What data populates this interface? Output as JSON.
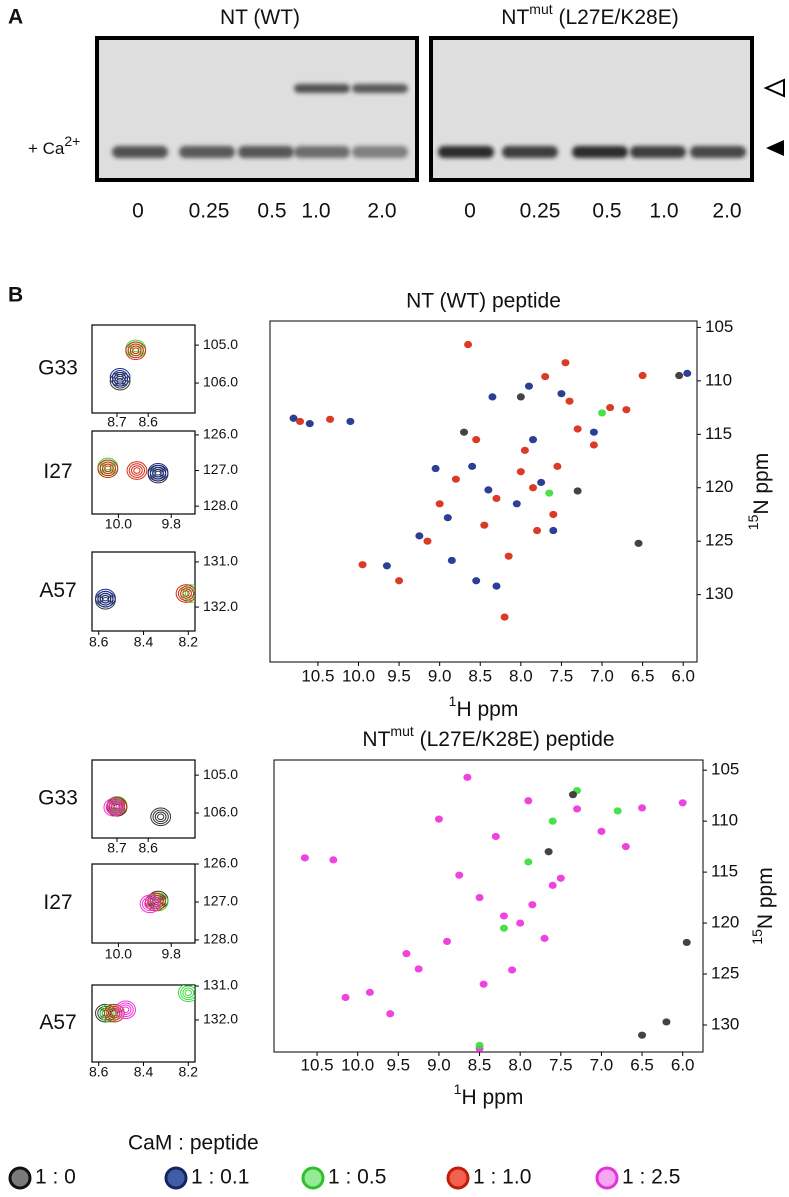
{
  "panel_a": {
    "label": "A",
    "condition": {
      "text": "+ Ca",
      "sup": "2+"
    },
    "gels": [
      {
        "title": {
          "main": "NT (WT)"
        },
        "lanes": [
          "0",
          "0.25",
          "0.5",
          "1.0",
          "2.0"
        ]
      },
      {
        "title": {
          "main": "NT",
          "sup": "mut",
          "rest": " (L27E/K28E)"
        },
        "lanes": [
          "0",
          "0.25",
          "0.5",
          "1.0",
          "2.0"
        ]
      }
    ]
  },
  "panel_b": {
    "label": "B"
  },
  "legend": {
    "title": "CaM : peptide",
    "entries": [
      {
        "label": "1 : 0",
        "color": "#7a7a7a",
        "edge": "#111111"
      },
      {
        "label": "1 : 0.1",
        "color": "#3f5ea5",
        "edge": "#16255e"
      },
      {
        "label": "1 : 0.5",
        "color": "#93ec93",
        "edge": "#2fbf2f"
      },
      {
        "label": "1 : 1.0",
        "color": "#f2604e",
        "edge": "#c41a08"
      },
      {
        "label": "1 : 2.5",
        "color": "#f7a6f2",
        "edge": "#e033d8"
      }
    ]
  },
  "chart_data": [
    {
      "type": "scatter",
      "title": "NT (WT) peptide",
      "x_label": {
        "sup": "1",
        "text": "H ppm"
      },
      "y_label": {
        "sup": "15",
        "text": "N ppm"
      },
      "xlim": [
        11.09,
        5.83
      ],
      "ylim": [
        136.3,
        104.4
      ],
      "xticks": [
        10.5,
        {
          "value": 10,
          "label": "10.0"
        },
        9.5,
        {
          "value": 9,
          "label": "9.0"
        },
        8.5,
        {
          "value": 8,
          "label": "8.0"
        },
        7.5,
        {
          "value": 7,
          "label": "7.0"
        },
        6.5,
        {
          "value": 6,
          "label": "6.0"
        }
      ],
      "yticks": [
        105,
        110,
        115,
        120,
        125,
        130
      ],
      "series": [
        {
          "color": "#1a2f8c",
          "x": [
            10.8,
            10.6,
            10.1,
            9.65,
            9.25,
            8.85,
            8.55,
            8.3,
            8.35,
            7.9,
            7.5,
            7.1,
            8.6,
            8.05,
            7.75,
            8.4,
            7.6,
            9.05,
            8.9,
            5.95,
            7.85
          ],
          "values": [
            113.5,
            114.0,
            113.8,
            127.3,
            124.5,
            126.8,
            128.7,
            129.2,
            111.5,
            110.5,
            111.2,
            114.8,
            118.0,
            121.5,
            119.5,
            120.2,
            124.0,
            118.2,
            122.8,
            109.3,
            115.5
          ]
        },
        {
          "color": "#d82a14",
          "x": [
            10.72,
            10.35,
            9.95,
            9.5,
            9.15,
            8.65,
            8.2,
            8.55,
            8.3,
            8.0,
            7.85,
            7.6,
            7.7,
            7.4,
            7.3,
            6.9,
            6.7,
            6.5,
            7.1,
            8.8,
            8.45,
            7.95,
            7.55,
            9.0,
            8.15,
            7.8,
            7.45
          ],
          "values": [
            113.8,
            113.6,
            127.2,
            128.7,
            125.0,
            106.6,
            132.1,
            115.5,
            121.0,
            118.5,
            120.0,
            122.5,
            109.6,
            111.9,
            114.5,
            112.5,
            112.7,
            109.5,
            116.0,
            119.2,
            123.5,
            116.5,
            118.0,
            121.5,
            126.4,
            124.0,
            108.3
          ]
        },
        {
          "color": "#333333",
          "x": [
            8.0,
            7.3,
            6.05,
            6.55,
            8.7
          ],
          "values": [
            111.5,
            120.3,
            109.5,
            125.2,
            114.8
          ]
        },
        {
          "color": "#3ddc3d",
          "x": [
            7.65,
            7.0
          ],
          "values": [
            120.5,
            113.0
          ]
        }
      ]
    },
    {
      "type": "scatter",
      "label": "G33",
      "xlim": [
        8.78,
        8.45
      ],
      "ylim": [
        106.79,
        104.47
      ],
      "xticks": [
        8.7,
        8.6
      ],
      "yticks": [
        {
          "value": 105,
          "label": "105.0"
        },
        {
          "value": 106,
          "label": "106.0"
        }
      ],
      "series": [
        {
          "color": "#333333",
          "x": [
            8.69
          ],
          "values": [
            105.95
          ]
        },
        {
          "color": "#1a2f8c",
          "x": [
            8.69
          ],
          "values": [
            105.85
          ]
        },
        {
          "color": "#3ddc3d",
          "x": [
            8.64
          ],
          "values": [
            105.1
          ]
        },
        {
          "color": "#d82a14",
          "x": [
            8.64
          ],
          "values": [
            105.15
          ]
        }
      ]
    },
    {
      "type": "scatter",
      "label": "I27",
      "xlim": [
        10.1,
        9.71
      ],
      "ylim": [
        128.22,
        125.89
      ],
      "xticks": [
        {
          "value": 10,
          "label": "10.0"
        },
        9.8
      ],
      "yticks": [
        {
          "value": 126,
          "label": "126.0"
        },
        {
          "value": 127,
          "label": "127.0"
        },
        {
          "value": 128,
          "label": "128.0"
        }
      ],
      "series": [
        {
          "color": "#333333",
          "x": [
            9.85
          ],
          "values": [
            127.1
          ]
        },
        {
          "color": "#1a2f8c",
          "x": [
            9.85
          ],
          "values": [
            127.05
          ]
        },
        {
          "color": "#3ddc3d",
          "x": [
            10.04
          ],
          "values": [
            126.9
          ]
        },
        {
          "color": "#d82a14",
          "x": [
            10.04,
            9.93
          ],
          "values": [
            126.95,
            127.0
          ]
        }
      ]
    },
    {
      "type": "scatter",
      "label": "A57",
      "xlim": [
        8.63,
        8.17
      ],
      "ylim": [
        132.53,
        130.78
      ],
      "xticks": [
        8.6,
        8.4,
        8.2
      ],
      "yticks": [
        {
          "value": 131,
          "label": "131.0"
        },
        {
          "value": 132,
          "label": "132.0"
        }
      ],
      "series": [
        {
          "color": "#333333",
          "x": [
            8.57
          ],
          "values": [
            131.85
          ]
        },
        {
          "color": "#1a2f8c",
          "x": [
            8.57
          ],
          "values": [
            131.8
          ]
        },
        {
          "color": "#3ddc3d",
          "x": [
            8.19
          ],
          "values": [
            131.7
          ]
        },
        {
          "color": "#d82a14",
          "x": [
            8.21
          ],
          "values": [
            131.7
          ]
        }
      ]
    },
    {
      "type": "scatter",
      "title": {
        "main": "NT",
        "sup": "mut",
        "rest": " (L27E/K28E) peptide"
      },
      "x_label": {
        "sup": "1",
        "text": "H ppm"
      },
      "y_label": {
        "sup": "15",
        "text": "N ppm"
      },
      "xlim": [
        11.03,
        5.75
      ],
      "ylim": [
        132.65,
        104.0
      ],
      "xticks": [
        10.5,
        {
          "value": 10,
          "label": "10.0"
        },
        9.5,
        {
          "value": 9,
          "label": "9.0"
        },
        8.5,
        {
          "value": 8,
          "label": "8.0"
        },
        7.5,
        {
          "value": 7,
          "label": "7.0"
        },
        6.5,
        {
          "value": 6,
          "label": "6.0"
        }
      ],
      "yticks": [
        105,
        110,
        115,
        120,
        125,
        130
      ],
      "series": [
        {
          "color": "#ee33dd",
          "x": [
            10.65,
            10.3,
            10.15,
            9.85,
            9.6,
            8.65,
            8.5,
            9.25,
            8.9,
            8.5,
            8.2,
            8.0,
            7.85,
            7.7,
            7.5,
            7.3,
            7.0,
            6.7,
            6.5,
            6.0,
            9.0,
            8.3,
            7.9,
            8.75,
            8.1,
            7.6,
            9.4,
            8.45
          ],
          "values": [
            113.6,
            113.8,
            127.3,
            126.8,
            128.9,
            105.7,
            132.3,
            124.5,
            121.8,
            117.5,
            119.3,
            120.0,
            118.2,
            121.5,
            115.6,
            108.8,
            111.0,
            112.5,
            108.7,
            108.2,
            109.8,
            111.5,
            108.0,
            115.3,
            124.6,
            116.3,
            123.0,
            126.0
          ]
        },
        {
          "color": "#3ddc3d",
          "x": [
            7.9,
            7.6,
            7.3,
            8.2,
            6.8,
            8.5
          ],
          "values": [
            114.0,
            110.0,
            107.0,
            120.5,
            109.0,
            132.0
          ]
        },
        {
          "color": "#333333",
          "x": [
            7.35,
            5.95,
            6.2,
            6.5,
            7.65
          ],
          "values": [
            107.4,
            121.9,
            129.7,
            131.0,
            113.0
          ]
        }
      ]
    },
    {
      "type": "scatter",
      "label": "G33",
      "xlim": [
        8.78,
        8.45
      ],
      "ylim": [
        106.66,
        104.6
      ],
      "xticks": [
        8.7,
        8.6
      ],
      "yticks": [
        {
          "value": 105,
          "label": "105.0"
        },
        {
          "value": 106,
          "label": "106.0"
        }
      ],
      "series": [
        {
          "color": "#333333",
          "x": [
            8.7,
            8.56
          ],
          "values": [
            105.85,
            106.1
          ]
        },
        {
          "color": "#3ddc3d",
          "x": [
            8.7
          ],
          "values": [
            105.8
          ]
        },
        {
          "color": "#d82a14",
          "x": [
            8.7
          ],
          "values": [
            105.82
          ]
        },
        {
          "color": "#ee33dd",
          "x": [
            8.71
          ],
          "values": [
            105.85
          ]
        }
      ]
    },
    {
      "type": "scatter",
      "label": "I27",
      "xlim": [
        10.1,
        9.71
      ],
      "ylim": [
        128.08,
        126.0
      ],
      "xticks": [
        {
          "value": 10,
          "label": "10.0"
        },
        9.8
      ],
      "yticks": [
        {
          "value": 126,
          "label": "126.0"
        },
        {
          "value": 127,
          "label": "127.0"
        },
        {
          "value": 128,
          "label": "128.0"
        }
      ],
      "series": [
        {
          "color": "#333333",
          "x": [
            9.85
          ],
          "values": [
            126.95
          ]
        },
        {
          "color": "#3ddc3d",
          "x": [
            9.85
          ],
          "values": [
            127.0
          ]
        },
        {
          "color": "#d82a14",
          "x": [
            9.86
          ],
          "values": [
            127.0
          ]
        },
        {
          "color": "#ee33dd",
          "x": [
            9.88
          ],
          "values": [
            127.05
          ]
        }
      ]
    },
    {
      "type": "scatter",
      "label": "A57",
      "xlim": [
        8.63,
        8.17
      ],
      "ylim": [
        133.24,
        130.97
      ],
      "xticks": [
        8.6,
        8.4,
        8.2
      ],
      "yticks": [
        {
          "value": 131,
          "label": "131.0"
        },
        {
          "value": 132,
          "label": "132.0"
        }
      ],
      "series": [
        {
          "color": "#333333",
          "x": [
            8.57
          ],
          "values": [
            131.8
          ]
        },
        {
          "color": "#3ddc3d",
          "x": [
            8.55,
            8.2
          ],
          "values": [
            131.8,
            131.2
          ]
        },
        {
          "color": "#d82a14",
          "x": [
            8.53
          ],
          "values": [
            131.8
          ]
        },
        {
          "color": "#ee33dd",
          "x": [
            8.48
          ],
          "values": [
            131.7
          ]
        }
      ]
    }
  ]
}
